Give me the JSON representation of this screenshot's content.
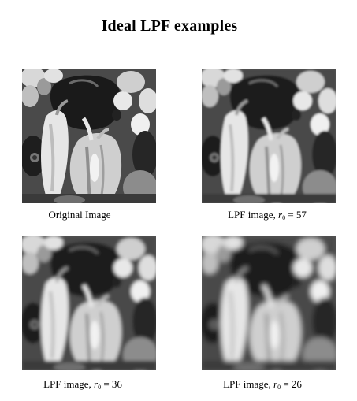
{
  "title": "Ideal LPF examples",
  "panels": [
    {
      "caption_main": "Original Image",
      "caption_var": "",
      "caption_sub": "",
      "caption_eq": "",
      "blur": 0
    },
    {
      "caption_main": "LPF image, ",
      "caption_var": "r",
      "caption_sub": "0",
      "caption_eq": " = 57",
      "blur": 1.3
    },
    {
      "caption_main": "LPF image, ",
      "caption_var": "r",
      "caption_sub": "0",
      "caption_eq": " = 36",
      "blur": 2.2
    },
    {
      "caption_main": "LPF image, ",
      "caption_var": "r",
      "caption_sub": "0",
      "caption_eq": " = 26",
      "blur": 3.2
    }
  ]
}
